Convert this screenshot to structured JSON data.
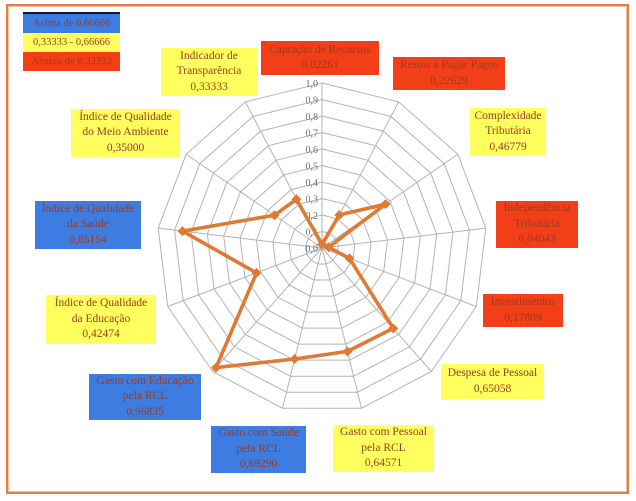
{
  "colors": {
    "blue": "#3D7CE0",
    "yellow": "#FFFF5E",
    "red": "#F23F17",
    "line": "#E07A33",
    "grid": "#B3B3B3",
    "label_text": "#9E3A20",
    "tick_text": "#6E6E6E",
    "frame_border": "#DE7F49"
  },
  "legend": {
    "items": [
      {
        "label": "Acima de 0,66666",
        "band": "blue"
      },
      {
        "label": "0,33333 - 0,66666",
        "band": "yellow"
      },
      {
        "label": "Abaixo de 0,33333",
        "band": "red"
      }
    ]
  },
  "chart_data": {
    "type": "radar",
    "direction": "clockwise",
    "start_axis": "top",
    "axis_count": 13,
    "axis_range": [
      0,
      1
    ],
    "grid_rings": 10,
    "axis_ticks": [
      "0,0",
      "0,1",
      "0,2",
      "0,3",
      "0,4",
      "0,5",
      "0,6",
      "0,7",
      "0,8",
      "0,9",
      "1,0"
    ],
    "categories": [
      "Captação de Recursos",
      "Restos a Pagar Pagos",
      "Complexidade Tributária",
      "Independência Tributária",
      "Investimentos",
      "Despesa de Pessoal",
      "Gasto com Pessoal pela RCL",
      "Gasto com Saúde pela RCL",
      "Gasto com Educação pela RCL",
      "Índice de Qualidade da Educação",
      "Índice de Qualidade da Saúde",
      "Índice de Qualidade do Meio Ambiente",
      "Indicador de Transparência"
    ],
    "values": [
      0.02261,
      0.22629,
      0.46779,
      0.04043,
      0.17809,
      0.65058,
      0.64571,
      0.6929,
      0.96835,
      0.42474,
      0.85154,
      0.35,
      0.33333
    ],
    "value_labels": [
      "0,02261",
      "0,22629",
      "0,46779",
      "0,04043",
      "0,17809",
      "0,65058",
      "0,64571",
      "0,69290",
      "0,96835",
      "0,42474",
      "0,85154",
      "0,35000",
      "0,33333"
    ],
    "labels": [
      {
        "lines": [
          "Captação de Recursos",
          "0,02261"
        ],
        "band": "red"
      },
      {
        "lines": [
          "Restos a Pagar Pagos",
          "0,22629"
        ],
        "band": "red"
      },
      {
        "lines": [
          "Complexidade",
          "Tributária",
          "0,46779"
        ],
        "band": "yellow"
      },
      {
        "lines": [
          "Independência",
          "Tributária",
          "0,04043"
        ],
        "band": "red"
      },
      {
        "lines": [
          "Investimentos",
          "0,17809"
        ],
        "band": "red"
      },
      {
        "lines": [
          "Despesa de Pessoal",
          "0,65058"
        ],
        "band": "yellow"
      },
      {
        "lines": [
          "Gasto com Pessoal",
          "pela RCL",
          "0,64571"
        ],
        "band": "yellow"
      },
      {
        "lines": [
          "Gasto com Saúde",
          "pela RCL",
          "0,69290"
        ],
        "band": "blue"
      },
      {
        "lines": [
          "Gasto com Educação",
          "pela RCL",
          "0,96835"
        ],
        "band": "blue"
      },
      {
        "lines": [
          "Índice de Qualidade",
          "da Educação",
          "0,42474"
        ],
        "band": "yellow"
      },
      {
        "lines": [
          "Índice de Qualidade",
          "da Saúde",
          "0,85154"
        ],
        "band": "blue"
      },
      {
        "lines": [
          "Índice de Qualidade",
          "do Meio Ambiente",
          "0,35000"
        ],
        "band": "yellow"
      },
      {
        "lines": [
          "Indicador de",
          "Transparência",
          "0,33333"
        ],
        "band": "yellow"
      }
    ]
  }
}
